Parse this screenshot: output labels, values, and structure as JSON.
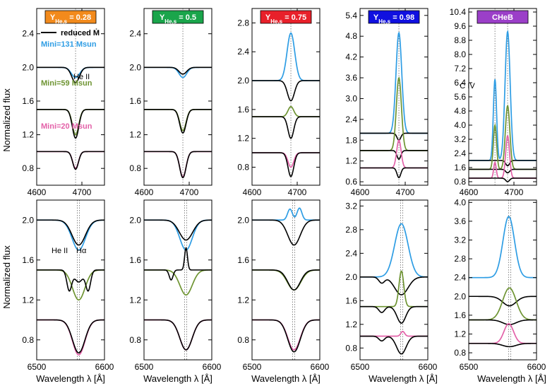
{
  "figure": {
    "ylabel": "Normalized flux",
    "xlabel": "Wavelength  λ [Å]",
    "colors": {
      "high": "#2e9de4",
      "mid": "#6e9432",
      "low": "#e361a8",
      "reduced": "#000000"
    },
    "legend": {
      "reduced": "reduced Ṁ",
      "mass_high": "Mini=131 Msun",
      "mass_mid": "Mini=59 Msun",
      "mass_low": "Mini=20 Msun"
    },
    "annotations": {
      "heii": "He II",
      "civ": "C IV",
      "halpha": "Hα"
    }
  },
  "chart_data": [
    {
      "type": "line",
      "row": 0,
      "col": 0,
      "badge": {
        "text": "YHe,s = 0.28",
        "color": "#f28a1c"
      },
      "xlim": [
        4600,
        4750
      ],
      "ylim": [
        0.6,
        2.7
      ],
      "xticks": [
        4600,
        4700
      ],
      "yticks": [
        0.8,
        1.2,
        1.6,
        2.0,
        2.4
      ],
      "marker_x": [
        4686
      ],
      "series": [
        {
          "color": "#2e9de4",
          "base": 2.0,
          "lines": [
            {
              "x": 4686,
              "depth": -0.12,
              "width": 13
            }
          ]
        },
        {
          "color": "#000000",
          "base": 2.0,
          "lines": [
            {
              "x": 4686,
              "depth": -0.18,
              "width": 12
            }
          ]
        },
        {
          "color": "#6e9432",
          "base": 1.5,
          "lines": [
            {
              "x": 4686,
              "depth": -0.3,
              "width": 10
            }
          ]
        },
        {
          "color": "#000000",
          "base": 1.5,
          "lines": [
            {
              "x": 4686,
              "depth": -0.34,
              "width": 10
            }
          ]
        },
        {
          "color": "#e361a8",
          "base": 1.0,
          "lines": [
            {
              "x": 4686,
              "depth": -0.2,
              "width": 9
            }
          ]
        },
        {
          "color": "#000000",
          "base": 1.0,
          "lines": [
            {
              "x": 4686,
              "depth": -0.21,
              "width": 9
            }
          ]
        }
      ]
    },
    {
      "type": "line",
      "row": 0,
      "col": 1,
      "badge": {
        "text": "YHe,s = 0.5",
        "color": "#1aa54b"
      },
      "xlim": [
        4600,
        4750
      ],
      "ylim": [
        0.6,
        2.7
      ],
      "xticks": [
        4600,
        4700
      ],
      "yticks": [
        0.8,
        1.2,
        1.6,
        2.0,
        2.4
      ],
      "marker_x": [
        4686
      ],
      "series": [
        {
          "color": "#2e9de4",
          "base": 2.0,
          "lines": [
            {
              "x": 4686,
              "depth": -0.12,
              "width": 12
            }
          ]
        },
        {
          "color": "#000000",
          "base": 2.0,
          "lines": [
            {
              "x": 4686,
              "depth": -0.08,
              "width": 12
            }
          ]
        },
        {
          "color": "#6e9432",
          "base": 1.5,
          "lines": [
            {
              "x": 4686,
              "depth": -0.25,
              "width": 10
            }
          ]
        },
        {
          "color": "#000000",
          "base": 1.5,
          "lines": [
            {
              "x": 4686,
              "depth": -0.28,
              "width": 10
            }
          ]
        },
        {
          "color": "#e361a8",
          "base": 1.0,
          "lines": [
            {
              "x": 4686,
              "depth": -0.3,
              "width": 10
            }
          ]
        },
        {
          "color": "#000000",
          "base": 1.0,
          "lines": [
            {
              "x": 4686,
              "depth": -0.31,
              "width": 10
            }
          ]
        }
      ]
    },
    {
      "type": "line",
      "row": 0,
      "col": 2,
      "badge": {
        "text": "YHe,s = 0.75",
        "color": "#e8202a"
      },
      "xlim": [
        4600,
        4750
      ],
      "ylim": [
        0.55,
        3.0
      ],
      "xticks": [
        4600,
        4700
      ],
      "yticks": [
        0.8,
        1.2,
        1.6,
        2.0,
        2.4,
        2.8
      ],
      "marker_x": [
        4686
      ],
      "series": [
        {
          "color": "#2e9de4",
          "base": 2.0,
          "lines": [
            {
              "x": 4686,
              "depth": 0.66,
              "width": 12
            }
          ]
        },
        {
          "color": "#000000",
          "base": 2.0,
          "lines": [
            {
              "x": 4686,
              "depth": -0.28,
              "width": 11
            }
          ]
        },
        {
          "color": "#6e9432",
          "base": 1.5,
          "lines": [
            {
              "x": 4686,
              "depth": 0.14,
              "width": 9
            }
          ]
        },
        {
          "color": "#000000",
          "base": 1.5,
          "lines": [
            {
              "x": 4686,
              "depth": -0.3,
              "width": 9
            }
          ]
        },
        {
          "color": "#e361a8",
          "base": 1.0,
          "lines": [
            {
              "x": 4686,
              "depth": -0.2,
              "width": 9
            }
          ]
        },
        {
          "color": "#000000",
          "base": 1.0,
          "lines": [
            {
              "x": 4686,
              "depth": -0.33,
              "width": 9
            }
          ]
        }
      ]
    },
    {
      "type": "line",
      "row": 0,
      "col": 3,
      "badge": {
        "text": "YHe,s = 0.98",
        "color": "#1010e0"
      },
      "xlim": [
        4600,
        4750
      ],
      "ylim": [
        0.5,
        5.6
      ],
      "xticks": [
        4600,
        4700
      ],
      "yticks": [
        0.6,
        1.2,
        1.8,
        2.4,
        3.0,
        3.6,
        4.2,
        4.8,
        5.4
      ],
      "marker_x": [
        4686
      ],
      "series": [
        {
          "color": "#2e9de4",
          "base": 2.0,
          "lines": [
            {
              "x": 4686,
              "depth": 2.9,
              "width": 9
            }
          ]
        },
        {
          "color": "#000000",
          "base": 2.0,
          "lines": [
            {
              "x": 4686,
              "depth": -0.2,
              "width": 6
            }
          ]
        },
        {
          "color": "#6e9432",
          "base": 1.5,
          "lines": [
            {
              "x": 4686,
              "depth": 2.1,
              "width": 8
            }
          ]
        },
        {
          "color": "#000000",
          "base": 1.5,
          "lines": [
            {
              "x": 4686,
              "depth": -0.25,
              "width": 6
            }
          ]
        },
        {
          "color": "#e361a8",
          "base": 1.0,
          "lines": [
            {
              "x": 4686,
              "depth": 0.8,
              "width": 7
            }
          ]
        },
        {
          "color": "#000000",
          "base": 1.0,
          "lines": [
            {
              "x": 4686,
              "depth": -0.28,
              "width": 6
            }
          ]
        }
      ]
    },
    {
      "type": "line",
      "row": 0,
      "col": 4,
      "badge": {
        "text": "CHeB",
        "color": "#9b3fc8"
      },
      "xlim": [
        4600,
        4750
      ],
      "ylim": [
        0.6,
        10.6
      ],
      "xticks": [
        4600,
        4700
      ],
      "yticks": [
        0.8,
        1.6,
        2.4,
        3.2,
        4.0,
        4.8,
        5.6,
        6.4,
        7.2,
        8.0,
        8.8,
        9.6,
        10.4
      ],
      "marker_x": [
        4658,
        4686
      ],
      "series": [
        {
          "color": "#2e9de4",
          "base": 2.0,
          "lines": [
            {
              "x": 4658,
              "depth": 4.6,
              "width": 5
            },
            {
              "x": 4686,
              "depth": 7.3,
              "width": 8
            }
          ]
        },
        {
          "color": "#000000",
          "base": 2.0,
          "lines": [
            {
              "x": 4686,
              "depth": -0.3,
              "width": 6
            }
          ]
        },
        {
          "color": "#6e9432",
          "base": 1.5,
          "lines": [
            {
              "x": 4658,
              "depth": 2.5,
              "width": 5
            },
            {
              "x": 4686,
              "depth": 3.6,
              "width": 7
            }
          ]
        },
        {
          "color": "#000000",
          "base": 1.5,
          "lines": [
            {
              "x": 4686,
              "depth": -0.2,
              "width": 6
            }
          ]
        },
        {
          "color": "#e361a8",
          "base": 1.0,
          "lines": [
            {
              "x": 4658,
              "depth": 0.9,
              "width": 4
            },
            {
              "x": 4686,
              "depth": 2.4,
              "width": 6
            }
          ]
        },
        {
          "color": "#000000",
          "base": 1.0,
          "lines": [
            {
              "x": 4686,
              "depth": -0.2,
              "width": 6
            }
          ]
        }
      ]
    },
    {
      "type": "line",
      "row": 1,
      "col": 0,
      "xlim": [
        6500,
        6600
      ],
      "ylim": [
        0.6,
        2.2
      ],
      "xticks": [
        6500,
        6600
      ],
      "yticks": [
        0.8,
        1.2,
        1.6,
        2.0
      ],
      "marker_x": [
        6560,
        6563
      ],
      "series": [
        {
          "color": "#2e9de4",
          "base": 2.0,
          "lines": [
            {
              "x": 6562,
              "depth": -0.3,
              "width": 14
            }
          ]
        },
        {
          "color": "#000000",
          "base": 2.0,
          "lines": [
            {
              "x": 6562,
              "depth": -0.25,
              "width": 14
            }
          ]
        },
        {
          "color": "#6e9432",
          "base": 1.5,
          "lines": [
            {
              "x": 6562,
              "depth": -0.3,
              "width": 13
            }
          ]
        },
        {
          "color": "#000000",
          "base": 1.5,
          "lines": [
            {
              "x": 6548,
              "depth": -0.2,
              "width": 5
            },
            {
              "x": 6576,
              "depth": -0.2,
              "width": 5
            },
            {
              "x": 6562,
              "depth": -0.12,
              "width": 9
            }
          ]
        },
        {
          "color": "#e361a8",
          "base": 1.0,
          "lines": [
            {
              "x": 6562,
              "depth": -0.35,
              "width": 13
            }
          ]
        },
        {
          "color": "#000000",
          "base": 1.0,
          "lines": [
            {
              "x": 6562,
              "depth": -0.33,
              "width": 13
            }
          ]
        }
      ]
    },
    {
      "type": "line",
      "row": 1,
      "col": 1,
      "xlim": [
        6500,
        6600
      ],
      "ylim": [
        0.6,
        2.2
      ],
      "xticks": [
        6500,
        6600
      ],
      "yticks": [
        0.8,
        1.2,
        1.6,
        2.0
      ],
      "marker_x": [
        6560,
        6563
      ],
      "series": [
        {
          "color": "#2e9de4",
          "base": 2.0,
          "lines": [
            {
              "x": 6562,
              "depth": -0.3,
              "width": 13
            }
          ]
        },
        {
          "color": "#000000",
          "base": 2.0,
          "lines": [
            {
              "x": 6562,
              "depth": -0.2,
              "width": 14
            }
          ]
        },
        {
          "color": "#6e9432",
          "base": 1.5,
          "lines": [
            {
              "x": 6562,
              "depth": -0.25,
              "width": 13
            }
          ]
        },
        {
          "color": "#000000",
          "base": 1.5,
          "lines": [
            {
              "x": 6562,
              "depth": 0.22,
              "width": 3
            },
            {
              "x": 6540,
              "depth": -0.1,
              "width": 4
            }
          ]
        },
        {
          "color": "#e361a8",
          "base": 1.0,
          "lines": [
            {
              "x": 6562,
              "depth": -0.3,
              "width": 13
            }
          ]
        },
        {
          "color": "#000000",
          "base": 1.0,
          "lines": [
            {
              "x": 6562,
              "depth": -0.3,
              "width": 13
            }
          ]
        }
      ]
    },
    {
      "type": "line",
      "row": 1,
      "col": 2,
      "xlim": [
        6500,
        6600
      ],
      "ylim": [
        0.6,
        2.2
      ],
      "xticks": [
        6500,
        6600
      ],
      "yticks": [
        0.8,
        1.2,
        1.6,
        2.0
      ],
      "marker_x": [
        6560,
        6563
      ],
      "series": [
        {
          "color": "#2e9de4",
          "base": 2.0,
          "lines": [
            {
              "x": 6556,
              "depth": 0.11,
              "width": 5
            },
            {
              "x": 6570,
              "depth": 0.12,
              "width": 5
            }
          ]
        },
        {
          "color": "#000000",
          "base": 2.0,
          "lines": [
            {
              "x": 6562,
              "depth": -0.25,
              "width": 13
            }
          ]
        },
        {
          "color": "#6e9432",
          "base": 1.5,
          "lines": [
            {
              "x": 6562,
              "depth": -0.2,
              "width": 14
            }
          ]
        },
        {
          "color": "#000000",
          "base": 1.5,
          "lines": [
            {
              "x": 6562,
              "depth": -0.2,
              "width": 13
            }
          ]
        },
        {
          "color": "#e361a8",
          "base": 1.0,
          "lines": [
            {
              "x": 6562,
              "depth": -0.3,
              "width": 13
            }
          ]
        },
        {
          "color": "#000000",
          "base": 1.0,
          "lines": [
            {
              "x": 6562,
              "depth": -0.32,
              "width": 13
            }
          ]
        }
      ]
    },
    {
      "type": "line",
      "row": 1,
      "col": 3,
      "xlim": [
        6500,
        6600
      ],
      "ylim": [
        0.6,
        3.3
      ],
      "xticks": [
        6500,
        6600
      ],
      "yticks": [
        0.8,
        1.2,
        1.6,
        2.0,
        2.4,
        2.8,
        3.2
      ],
      "marker_x": [
        6560,
        6563
      ],
      "series": [
        {
          "color": "#2e9de4",
          "base": 2.0,
          "lines": [
            {
              "x": 6561,
              "depth": 0.9,
              "width": 14
            }
          ]
        },
        {
          "color": "#000000",
          "base": 2.0,
          "lines": [
            {
              "x": 6561,
              "depth": -0.3,
              "width": 14
            },
            {
              "x": 6532,
              "depth": -0.1,
              "width": 6
            }
          ]
        },
        {
          "color": "#6e9432",
          "base": 1.5,
          "lines": [
            {
              "x": 6561,
              "depth": 0.6,
              "width": 5
            }
          ]
        },
        {
          "color": "#000000",
          "base": 1.5,
          "lines": [
            {
              "x": 6561,
              "depth": -0.28,
              "width": 9
            },
            {
              "x": 6532,
              "depth": -0.1,
              "width": 6
            }
          ]
        },
        {
          "color": "#e361a8",
          "base": 1.0,
          "lines": [
            {
              "x": 6563,
              "depth": 0.08,
              "width": 4
            }
          ]
        },
        {
          "color": "#000000",
          "base": 1.0,
          "lines": [
            {
              "x": 6561,
              "depth": -0.3,
              "width": 10
            },
            {
              "x": 6532,
              "depth": -0.08,
              "width": 6
            }
          ]
        }
      ]
    },
    {
      "type": "line",
      "row": 1,
      "col": 4,
      "xlim": [
        6500,
        6600
      ],
      "ylim": [
        0.65,
        4.05
      ],
      "xticks": [
        6500,
        6600
      ],
      "yticks": [
        0.8,
        1.2,
        1.6,
        2.0,
        2.4,
        2.8,
        3.2,
        3.6,
        4.0
      ],
      "marker_x": [
        6559,
        6562
      ],
      "series": [
        {
          "color": "#2e9de4",
          "base": 2.4,
          "lines": [
            {
              "x": 6559,
              "depth": 1.3,
              "width": 12
            }
          ]
        },
        {
          "color": "#000000",
          "base": 2.0,
          "lines": [
            {
              "x": 6560,
              "depth": -0.2,
              "width": 14
            }
          ]
        },
        {
          "color": "#6e9432",
          "base": 1.5,
          "lines": [
            {
              "x": 6560,
              "depth": 0.68,
              "width": 14
            }
          ]
        },
        {
          "color": "#000000",
          "base": 1.5,
          "lines": [
            {
              "x": 6560,
              "depth": -0.1,
              "width": 14
            }
          ]
        },
        {
          "color": "#e361a8",
          "base": 1.0,
          "lines": [
            {
              "x": 6559,
              "depth": 0.42,
              "width": 10
            }
          ]
        },
        {
          "color": "#000000",
          "base": 1.0,
          "lines": [
            {
              "x": 6560,
              "depth": -0.07,
              "width": 14
            }
          ]
        }
      ]
    }
  ]
}
